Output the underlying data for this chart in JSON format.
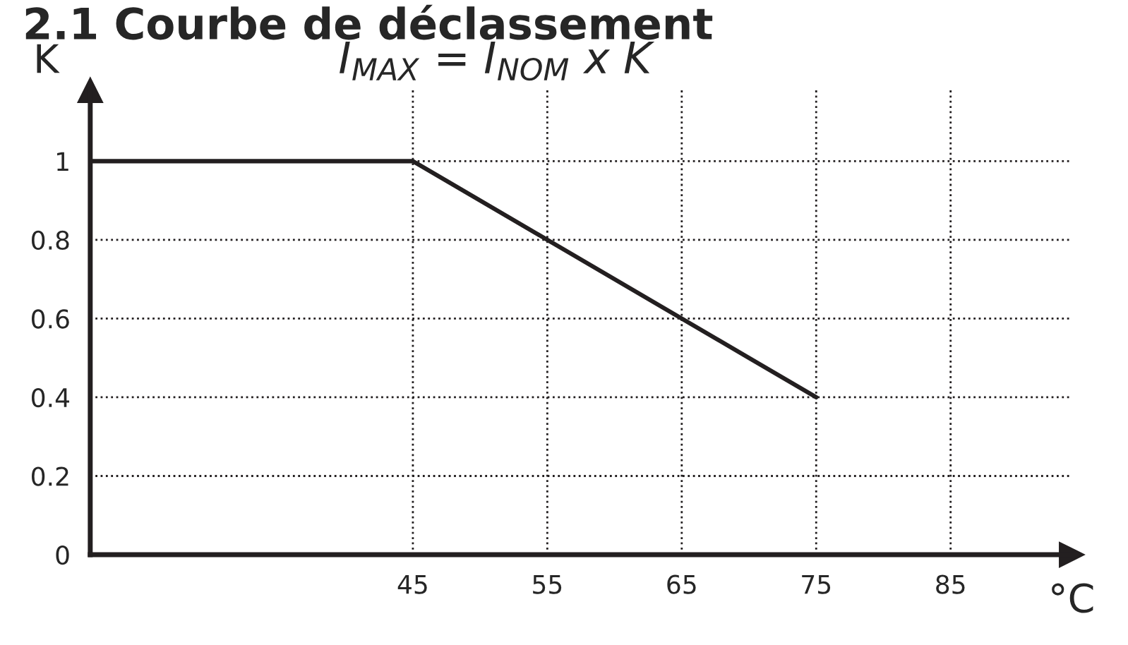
{
  "chart_data": {
    "type": "line",
    "title": "2.1 Courbe de déclassement",
    "subtitle": "I$_{MAX}$ = I$_{NOM}$ x K",
    "xlabel": "°C",
    "ylabel": "K",
    "x": [
      21,
      45,
      75
    ],
    "series": [
      {
        "color": "#231f20",
        "values": [
          1,
          1,
          0.4
        ]
      }
    ],
    "xlim": [
      21,
      94
    ],
    "ylim": [
      0,
      1.18
    ],
    "xticks": [
      45,
      55,
      65,
      75,
      85
    ],
    "yticks": [
      0,
      0.2,
      0.4,
      0.6,
      0.8,
      1
    ],
    "grid": true,
    "legend": false,
    "marker": "none",
    "line_style": "solid"
  }
}
